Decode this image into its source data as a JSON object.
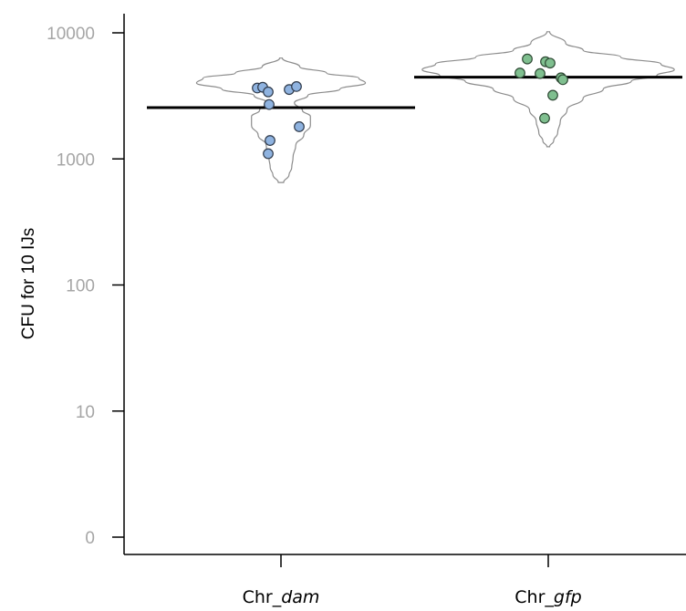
{
  "chart_data": {
    "type": "violin",
    "ylabel": "CFU for 10 IJs",
    "yscale": "log",
    "ylim": [
      1,
      10000
    ],
    "yticks": [
      {
        "value": 10000,
        "label": "10000"
      },
      {
        "value": 1000,
        "label": "1000"
      },
      {
        "value": 100,
        "label": "100"
      },
      {
        "value": 10,
        "label": "10"
      },
      {
        "value": 1,
        "label": "0"
      }
    ],
    "grid": false,
    "groups": [
      {
        "prefix": "Chr_",
        "name": "dam",
        "color": "#8fb3e0",
        "edge": "#2f3a4a",
        "mean": 2550,
        "violin_range": [
          650,
          6300
        ],
        "points": [
          3650,
          3700,
          3400,
          2700,
          3550,
          3750,
          1800,
          1400,
          1100
        ]
      },
      {
        "prefix": "Chr_",
        "name": "gfp",
        "color": "#7fbf8f",
        "edge": "#2f4a35",
        "mean": 4450,
        "violin_range": [
          1250,
          10200
        ],
        "points": [
          6200,
          5900,
          5750,
          4800,
          4750,
          4400,
          4250,
          3200,
          2100
        ]
      }
    ]
  }
}
